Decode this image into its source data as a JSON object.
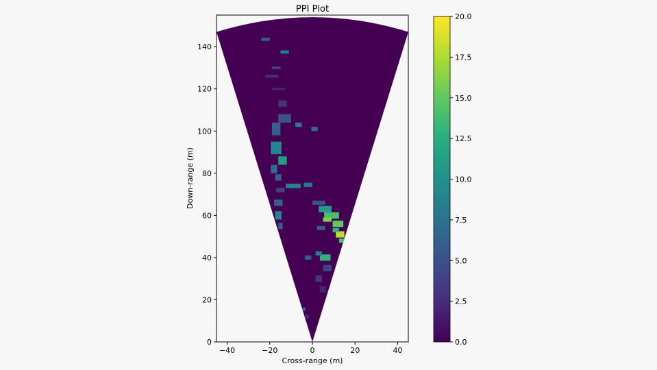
{
  "chart_data": {
    "type": "heatmap",
    "subtype": "ppi-sector",
    "title": "PPI Plot",
    "xlabel": "Cross-range (m)",
    "ylabel": "Down-range (m)",
    "xlim": [
      -45,
      45
    ],
    "ylim": [
      0,
      155
    ],
    "xticks": [
      -40,
      -20,
      0,
      20,
      40
    ],
    "yticks": [
      0,
      20,
      40,
      60,
      80,
      100,
      120,
      140
    ],
    "sector": {
      "apex": [
        0,
        0
      ],
      "edge_left": [
        -45,
        147
      ],
      "edge_right": [
        45,
        147
      ],
      "max_range_m": 154
    },
    "colorbar": {
      "min": 0,
      "max": 20,
      "ticks": [
        "0.0",
        "2.5",
        "5.0",
        "7.5",
        "10.0",
        "12.5",
        "15.0",
        "17.5",
        "20.0"
      ],
      "colormap": "viridis"
    },
    "background_value": 0,
    "returns": [
      {
        "x": -22,
        "y": 143.5,
        "w": 4,
        "h": 1.5,
        "v": 6
      },
      {
        "x": -13,
        "y": 137.5,
        "w": 4,
        "h": 1.5,
        "v": 8
      },
      {
        "x": -17,
        "y": 130,
        "w": 4,
        "h": 1.2,
        "v": 4
      },
      {
        "x": -19,
        "y": 126,
        "w": 6,
        "h": 1.2,
        "v": 3
      },
      {
        "x": -16,
        "y": 120,
        "w": 6,
        "h": 1.2,
        "v": 2
      },
      {
        "x": -14,
        "y": 113,
        "w": 4,
        "h": 3,
        "v": 3
      },
      {
        "x": -13,
        "y": 106,
        "w": 6,
        "h": 4,
        "v": 5
      },
      {
        "x": -6.5,
        "y": 103,
        "w": 3,
        "h": 2,
        "v": 8
      },
      {
        "x": 1,
        "y": 101,
        "w": 3,
        "h": 2,
        "v": 7
      },
      {
        "x": -17,
        "y": 101,
        "w": 4,
        "h": 6,
        "v": 6
      },
      {
        "x": -17,
        "y": 92,
        "w": 5,
        "h": 6,
        "v": 9
      },
      {
        "x": -14,
        "y": 86,
        "w": 4,
        "h": 4,
        "v": 11
      },
      {
        "x": -18,
        "y": 82,
        "w": 3,
        "h": 4,
        "v": 7
      },
      {
        "x": -9,
        "y": 74,
        "w": 7,
        "h": 2,
        "v": 9
      },
      {
        "x": -2,
        "y": 74.5,
        "w": 4,
        "h": 2,
        "v": 8
      },
      {
        "x": -16,
        "y": 78,
        "w": 3,
        "h": 3,
        "v": 6
      },
      {
        "x": -15,
        "y": 72,
        "w": 4,
        "h": 2,
        "v": 4
      },
      {
        "x": -16,
        "y": 66,
        "w": 4,
        "h": 3,
        "v": 6
      },
      {
        "x": -16,
        "y": 60,
        "w": 3,
        "h": 4,
        "v": 9
      },
      {
        "x": -15,
        "y": 55,
        "w": 2,
        "h": 3,
        "v": 6
      },
      {
        "x": 3,
        "y": 66,
        "w": 6,
        "h": 2,
        "v": 5
      },
      {
        "x": 6,
        "y": 63,
        "w": 6,
        "h": 3,
        "v": 11
      },
      {
        "x": 9,
        "y": 60,
        "w": 7,
        "h": 3,
        "v": 14
      },
      {
        "x": 7,
        "y": 58,
        "w": 4,
        "h": 2,
        "v": 16
      },
      {
        "x": 12,
        "y": 56,
        "w": 5,
        "h": 3,
        "v": 15
      },
      {
        "x": 13,
        "y": 51,
        "w": 4,
        "h": 3,
        "v": 18
      },
      {
        "x": 11,
        "y": 53,
        "w": 3,
        "h": 2,
        "v": 13
      },
      {
        "x": 14,
        "y": 48,
        "w": 3,
        "h": 2,
        "v": 14
      },
      {
        "x": 4,
        "y": 54,
        "w": 4,
        "h": 2,
        "v": 6
      },
      {
        "x": 6,
        "y": 40,
        "w": 5,
        "h": 3,
        "v": 13
      },
      {
        "x": 3,
        "y": 42,
        "w": 3,
        "h": 2,
        "v": 8
      },
      {
        "x": -2,
        "y": 40,
        "w": 3,
        "h": 2,
        "v": 6
      },
      {
        "x": 7,
        "y": 35,
        "w": 4,
        "h": 3,
        "v": 4
      },
      {
        "x": 3,
        "y": 30,
        "w": 3,
        "h": 3,
        "v": 3
      },
      {
        "x": 5,
        "y": 25,
        "w": 3,
        "h": 3,
        "v": 2
      },
      {
        "x": -4,
        "y": 15.5,
        "w": 1.5,
        "h": 1.5,
        "v": 7
      },
      {
        "x": -2.5,
        "y": 12,
        "w": 2,
        "h": 2,
        "v": 2
      }
    ]
  }
}
